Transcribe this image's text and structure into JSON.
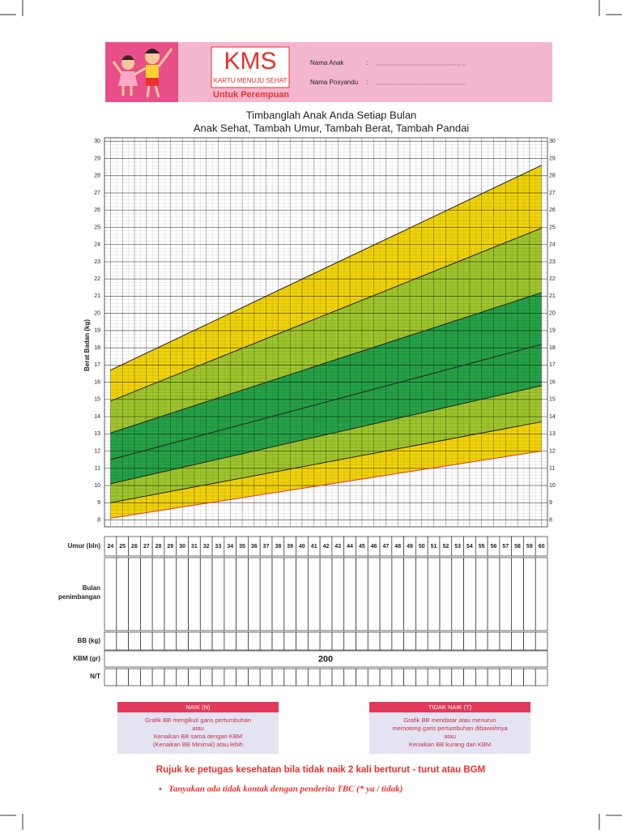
{
  "header": {
    "logo": "KMS",
    "logo_subtitle": "KARTU MENUJU SEHAT",
    "subtitle": "Untuk Perempuan",
    "fields": [
      {
        "label": "Nama Anak",
        "separator": ":"
      },
      {
        "label": "Nama Posyandu",
        "separator": ":"
      }
    ]
  },
  "chart_data": {
    "type": "band",
    "title": "Timbanglah Anak Anda Setiap Bulan",
    "subtitle": "Anak Sehat, Tambah Umur, Tambah Berat, Tambah Pandai",
    "y_label": "Berat Badan (kg)",
    "x": [
      24,
      60
    ],
    "xlim": [
      23.5,
      60.5
    ],
    "xticks": [
      24,
      25,
      26,
      27,
      28,
      29,
      30,
      31,
      32,
      33,
      34,
      35,
      36,
      37,
      38,
      39,
      40,
      41,
      42,
      43,
      44,
      45,
      46,
      47,
      48,
      49,
      50,
      51,
      52,
      53,
      54,
      55,
      56,
      57,
      58,
      59,
      60
    ],
    "ylim": [
      7.6,
      30.2
    ],
    "yticks": [
      8,
      9,
      10,
      11,
      12,
      13,
      14,
      15,
      16,
      17,
      18,
      19,
      20,
      21,
      22,
      23,
      24,
      25,
      26,
      27,
      28,
      29,
      30
    ],
    "grid": true,
    "series": [
      {
        "color": "#e8322b",
        "values": [
          8.1,
          12.0
        ]
      },
      {
        "color": "#222222",
        "values": [
          9.0,
          13.7
        ]
      },
      {
        "color": "#222222",
        "values": [
          10.1,
          15.8
        ]
      },
      {
        "color": "#222222",
        "values": [
          11.5,
          18.2
        ]
      },
      {
        "color": "#222222",
        "values": [
          13.05,
          21.2
        ]
      },
      {
        "color": "#222222",
        "values": [
          14.9,
          24.95
        ]
      },
      {
        "color": "#222222",
        "values": [
          16.7,
          28.6
        ]
      }
    ],
    "band_colors": [
      "#f0d20a",
      "#9dc42c",
      "#25a046",
      "#25a046",
      "#9dc42c",
      "#f0d20a"
    ]
  },
  "table": {
    "age_label": "Umur (bln)",
    "weighing_label": [
      "Bulan",
      "penimbangan"
    ],
    "weight_label": "BB (kg)",
    "kbm_label": "KBM (gr)",
    "kbm_value": 200,
    "nt_label": "N/T"
  },
  "legend_boxes": [
    {
      "title": "NAIK (N)",
      "lines": [
        "Grafik BB mengikuti garis pertumbuhan",
        "atau",
        "Kenaikan BB sama dengan KBM",
        "(Kenaikan BB Minimal) atau lebih"
      ]
    },
    {
      "title": "TIDAK NAIK (T)",
      "lines": [
        "Grafik BB mendatar atau menurun",
        "memotong garis pertumbuhan dibawahnya",
        "atau",
        "Kenaikan BB kurang dari KBM"
      ]
    }
  ],
  "footer": {
    "warning": "Rujuk ke petugas kesehatan bila tidak naik 2 kali berturut - turut atau BGM",
    "note": "Tanyakan ada tidak kontak dengan penderita TBC (* ya / tidak)"
  }
}
